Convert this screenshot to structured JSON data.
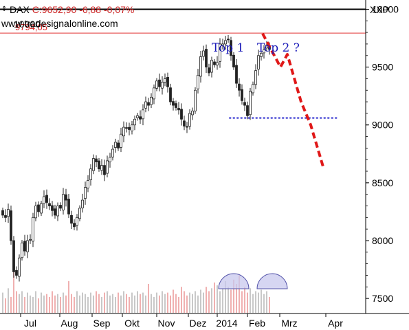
{
  "header": {
    "symbol": "DAX",
    "price": "C:9652,90",
    "change": "-6,88",
    "change_pct": "-0,07%",
    "exchange": "XXP",
    "watermark": "www.tradesignalonline.com",
    "overlap_label": "10000"
  },
  "colors": {
    "price": "#222222",
    "quote_red": "#cc2222",
    "resistance": "#e03030",
    "projection": "#e01818",
    "support": "#2222cc",
    "annotation": "#1a1ab8",
    "volume_up": "#c8c8c8",
    "volume_down": "#f0b0b0",
    "bubble": "#c8c8ee"
  },
  "chart_data": {
    "type": "candlestick",
    "x_ticks": [
      "Jul",
      "Aug",
      "Sep",
      "Okt",
      "Nov",
      "Dez",
      "2014",
      "Feb",
      "Mrz",
      "Apr"
    ],
    "y_ticks": [
      7500,
      8000,
      8500,
      9000,
      9500,
      10000
    ],
    "ylim": [
      7370,
      10080
    ],
    "grid": false,
    "close_series": [
      8220,
      8200,
      8270,
      8000,
      7730,
      7700,
      7850,
      7980,
      7910,
      8000,
      8010,
      8200,
      8300,
      8250,
      8320,
      8380,
      8330,
      8300,
      8260,
      8220,
      8300,
      8280,
      8400,
      8350,
      8230,
      8150,
      8120,
      8200,
      8280,
      8350,
      8460,
      8520,
      8620,
      8710,
      8680,
      8620,
      8650,
      8570,
      8690,
      8720,
      8790,
      8850,
      8800,
      8920,
      8980,
      8970,
      8960,
      9000,
      9050,
      9080,
      9050,
      9130,
      9200,
      9170,
      9240,
      9320,
      9380,
      9330,
      9370,
      9400,
      9330,
      9200,
      9170,
      9150,
      9130,
      9050,
      8990,
      8980,
      9100,
      9120,
      9300,
      9430,
      9590,
      9640,
      9500,
      9450,
      9560,
      9520,
      9540,
      9700,
      9700,
      9730,
      9740,
      9600,
      9500,
      9360,
      9300,
      9210,
      9170,
      9080,
      9290,
      9350,
      9470,
      9600,
      9620,
      9650,
      9690,
      9652.9
    ],
    "resistance": {
      "value": 9794.05,
      "label": "9794,05"
    },
    "support_level": 9060,
    "projection_path": [
      {
        "label": "Top 2 ?",
        "value": 9790
      },
      {
        "value": 9500
      },
      {
        "value": 9610
      },
      {
        "value": 9200
      },
      {
        "value": 9000
      },
      {
        "value": 8640
      }
    ],
    "annotations": [
      {
        "text": "Top 1",
        "value": 9830
      },
      {
        "text": "Top 2 ?",
        "value": 9830
      }
    ],
    "volume": [
      28,
      20,
      34,
      22,
      95,
      30,
      26,
      30,
      22,
      28,
      24,
      22,
      30,
      20,
      28,
      24,
      26,
      22,
      30,
      24,
      26,
      22,
      28,
      24,
      44,
      26,
      22,
      30,
      24,
      28,
      26,
      22,
      28,
      24,
      30,
      26,
      22,
      28,
      30,
      24,
      26,
      22,
      28,
      24,
      30,
      26,
      22,
      28,
      24,
      30,
      26,
      28,
      24,
      40,
      26,
      22,
      28,
      24,
      30,
      26,
      28,
      24,
      32,
      26,
      22,
      36,
      30,
      24,
      28,
      26,
      30,
      24,
      32,
      28,
      36,
      30,
      34,
      42,
      38,
      30,
      34,
      44,
      36,
      32,
      46,
      40,
      52,
      30,
      36,
      28,
      34,
      26,
      30,
      28,
      32,
      26,
      30,
      22
    ]
  }
}
